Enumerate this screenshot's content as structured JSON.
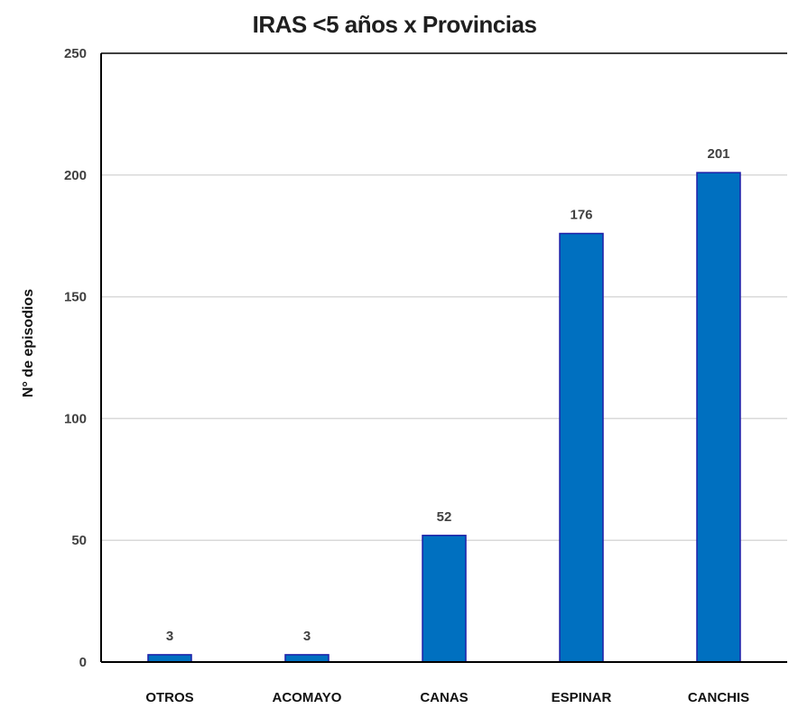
{
  "chart_data": {
    "type": "bar",
    "title": "IRAS <5 años x Provincias",
    "xlabel": "",
    "ylabel": "N° de episodios",
    "categories": [
      "OTROS",
      "ACOMAYO",
      "CANAS",
      "ESPINAR",
      "CANCHIS"
    ],
    "values": [
      3,
      3,
      52,
      176,
      201
    ],
    "data_labels": [
      "3",
      "3",
      "52",
      "176",
      "201"
    ],
    "ylim": [
      0,
      250
    ],
    "yticks": [
      0,
      50,
      100,
      150,
      200,
      250
    ],
    "grid": true,
    "legend": "none",
    "colors": {
      "bar": "#0070C0",
      "bar_border": "#1F1FA8",
      "grid": "#D9D9D9",
      "axis": "#000000"
    }
  }
}
